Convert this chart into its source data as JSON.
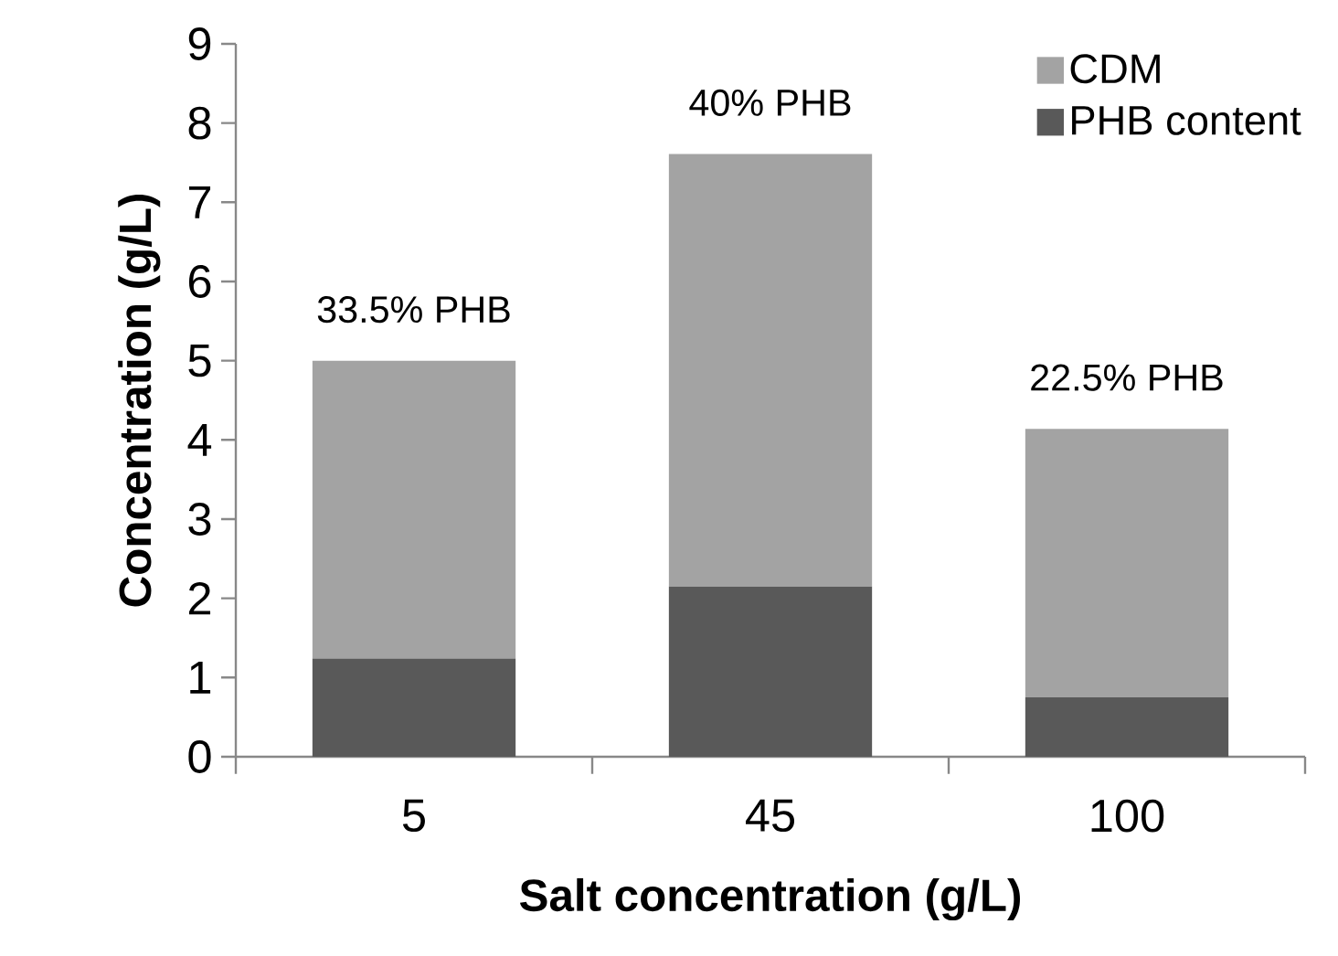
{
  "chart_data": {
    "type": "bar",
    "stacked": true,
    "xlabel": "Salt concentration (g/L)",
    "ylabel": "Concentration (g/L)",
    "categories": [
      "5",
      "45",
      "100"
    ],
    "series": [
      {
        "name": "PHB content",
        "color": "#595959",
        "values": [
          1.24,
          2.15,
          0.75
        ]
      },
      {
        "name": "CDM",
        "color": "#a3a3a3",
        "values": [
          3.76,
          5.46,
          3.39
        ]
      }
    ],
    "ylim": [
      0,
      9
    ],
    "yticks": [
      0,
      1,
      2,
      3,
      4,
      5,
      6,
      7,
      8,
      9
    ],
    "legend": "top right",
    "grid": false,
    "annotations": [
      {
        "text": "33.5% PHB",
        "x": "5",
        "y": 5.0
      },
      {
        "text": "40% PHB",
        "x": "45",
        "y": 7.61
      },
      {
        "text": "22.5% PHB",
        "x": "100",
        "y": 4.14
      }
    ]
  }
}
